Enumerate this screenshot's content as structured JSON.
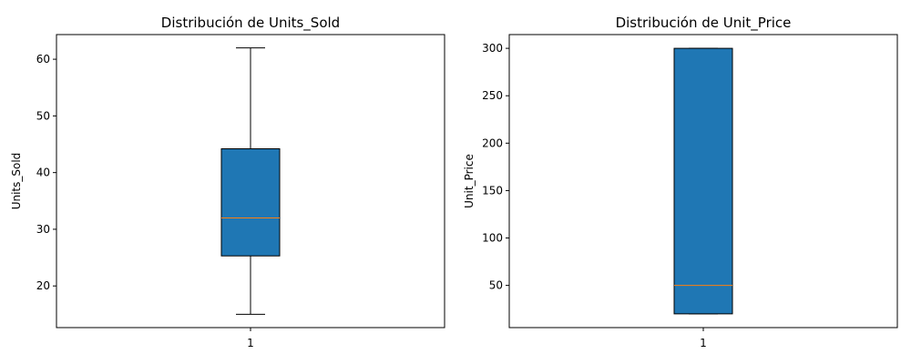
{
  "chart_data": [
    {
      "type": "box",
      "title": "Distribución de Units_Sold",
      "xlabel": "",
      "ylabel": "Units_Sold",
      "categories": [
        "1"
      ],
      "ylim": [
        12.65,
        64.35
      ],
      "yticks": [
        20,
        30,
        40,
        50,
        60
      ],
      "box": {
        "whisker_low": 15,
        "q1": 25.3,
        "median": 32,
        "q3": 44.2,
        "whisker_high": 62
      },
      "box_color": "#1f77b4",
      "median_color": "#ff7f0e",
      "grid": false
    },
    {
      "type": "box",
      "title": "Distribución de Unit_Price",
      "xlabel": "",
      "ylabel": "Unit_Price",
      "categories": [
        "1"
      ],
      "ylim": [
        5.5,
        314.5
      ],
      "yticks": [
        50,
        100,
        150,
        200,
        250,
        300
      ],
      "box": {
        "whisker_low": 20,
        "q1": 20,
        "median": 50,
        "q3": 300,
        "whisker_high": 300
      },
      "box_color": "#1f77b4",
      "median_color": "#ff7f0e",
      "grid": false
    }
  ]
}
